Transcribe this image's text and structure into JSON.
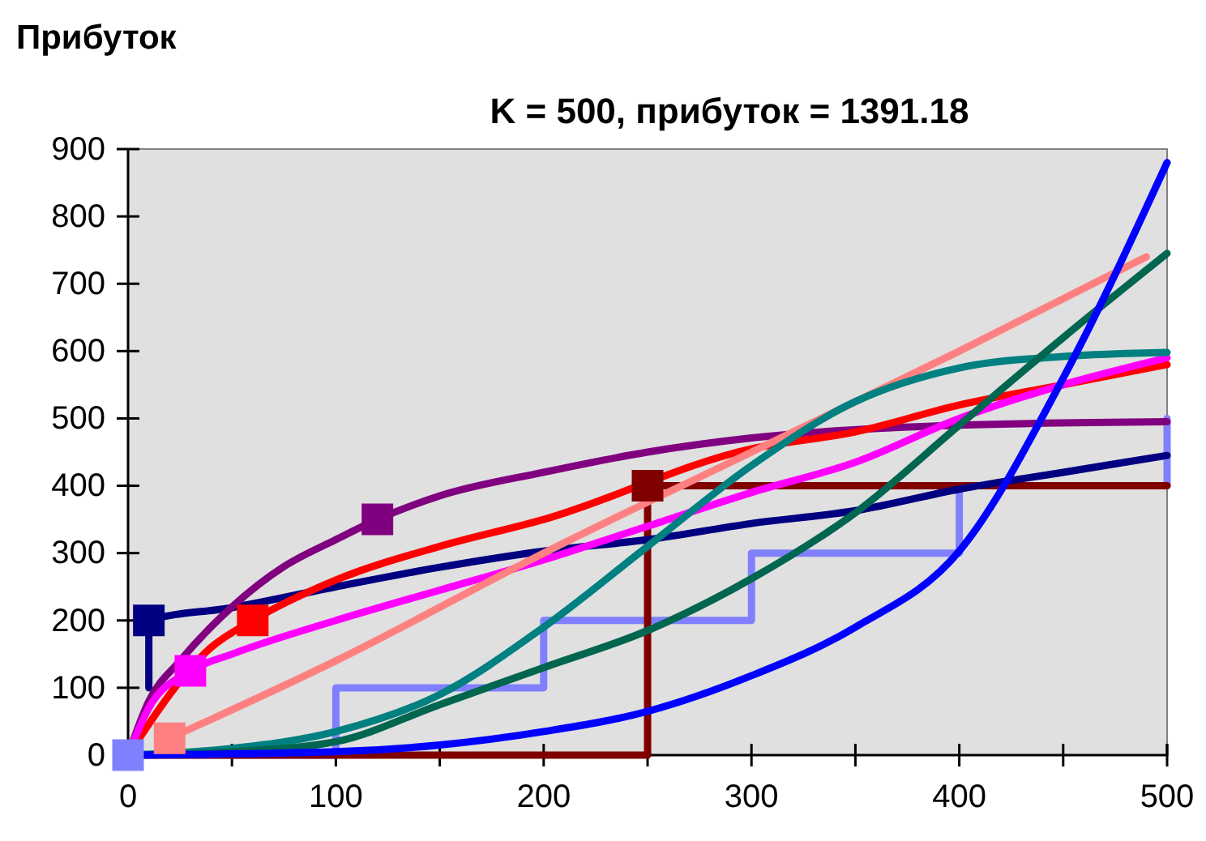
{
  "chart_data": {
    "type": "line",
    "title": "K = 500,  прибуток = 1391.18",
    "ylabel": "Прибуток",
    "xlim": [
      0,
      500
    ],
    "ylim": [
      0,
      900
    ],
    "xticks": [
      0,
      {
        "value": 50,
        "label": null
      },
      100,
      {
        "value": 150,
        "label": null
      },
      200,
      {
        "value": 250,
        "label": null
      },
      300,
      {
        "value": 350,
        "label": null
      },
      400,
      {
        "value": 450,
        "label": null
      },
      500
    ],
    "yticks": [
      0,
      100,
      200,
      300,
      400,
      500,
      600,
      700,
      800,
      900
    ],
    "grid": false,
    "line_style": "solid",
    "series": [
      {
        "type": "step",
        "color": "#8080ff",
        "x": [
          0,
          100,
          200,
          300,
          400,
          500
        ],
        "values": [
          0,
          100,
          200,
          300,
          400,
          500
        ]
      },
      {
        "type": "step",
        "color": "#800000",
        "x": [
          0,
          250,
          500
        ],
        "values": [
          0,
          400,
          400
        ]
      },
      {
        "color": "#000080",
        "x": [
          10,
          10,
          50,
          100,
          150,
          200,
          250,
          300,
          350,
          400,
          450,
          500
        ],
        "values": [
          100,
          200,
          219,
          250,
          279,
          303,
          320,
          344,
          363,
          395,
          420,
          445
        ]
      },
      {
        "color": "#800080",
        "x": [
          0,
          10,
          25,
          50,
          75,
          100,
          120,
          150,
          200,
          250,
          300,
          400,
          500
        ],
        "values": [
          0,
          80,
          140,
          220,
          280,
          320,
          350,
          385,
          420,
          450,
          471,
          490,
          495
        ]
      },
      {
        "color": "#ff0000",
        "x": [
          0,
          40,
          60,
          100,
          150,
          200,
          300,
          350,
          400,
          450,
          500
        ],
        "values": [
          0,
          160,
          200,
          260,
          310,
          350,
          455,
          480,
          520,
          550,
          580
        ]
      },
      {
        "color": "#ff00ff",
        "x": [
          0,
          10,
          30,
          50,
          100,
          150,
          200,
          250,
          300,
          350,
          400,
          450,
          500
        ],
        "values": [
          0,
          70,
          125,
          150,
          200,
          245,
          290,
          340,
          390,
          435,
          500,
          550,
          590
        ]
      },
      {
        "color": "#ff8080",
        "x": [
          20,
          100,
          200,
          300,
          400,
          490
        ],
        "values": [
          25,
          140,
          300,
          450,
          600,
          740
        ]
      },
      {
        "color": "#008080",
        "x": [
          0,
          50,
          100,
          150,
          200,
          250,
          300,
          350,
          400,
          450,
          500
        ],
        "values": [
          0,
          10,
          35,
          90,
          190,
          310,
          430,
          525,
          575,
          592,
          598
        ]
      },
      {
        "color": "#006650",
        "x": [
          0,
          50,
          100,
          150,
          200,
          250,
          300,
          350,
          400,
          450,
          500
        ],
        "values": [
          0,
          5,
          20,
          75,
          130,
          185,
          262,
          360,
          490,
          620,
          745
        ]
      },
      {
        "color": "#0000ff",
        "x": [
          0,
          100,
          150,
          200,
          250,
          300,
          350,
          400,
          450,
          500
        ],
        "values": [
          0,
          5,
          15,
          35,
          65,
          118,
          190,
          303,
          560,
          880
        ]
      },
      {
        "type": "scatter",
        "marker": "square",
        "x": [
          0,
          10,
          120,
          60,
          30,
          20,
          250
        ],
        "values": [
          0,
          200,
          350,
          200,
          125,
          25,
          400
        ],
        "colors": [
          "#8080ff",
          "#000080",
          "#800080",
          "#ff0000",
          "#ff00ff",
          "#ff8080",
          "#800000"
        ]
      }
    ]
  }
}
